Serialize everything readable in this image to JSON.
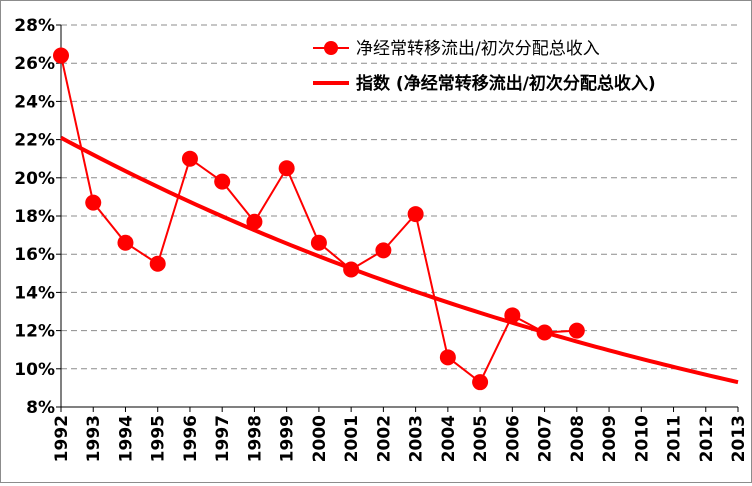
{
  "chart_data": {
    "type": "line",
    "categories": [
      "1992",
      "1993",
      "1994",
      "1995",
      "1996",
      "1997",
      "1998",
      "1999",
      "2000",
      "2001",
      "2002",
      "2003",
      "2004",
      "2005",
      "2006",
      "2007",
      "2008",
      "2009",
      "2010",
      "2011",
      "2012",
      "2013"
    ],
    "series": [
      {
        "name": "净经常转移流出/初次分配总收入",
        "color": "#ff0000",
        "marker": "circle",
        "values": [
          26.4,
          18.7,
          16.6,
          15.5,
          21.0,
          19.8,
          17.7,
          20.5,
          16.6,
          15.2,
          16.2,
          18.1,
          10.6,
          9.3,
          12.8,
          11.9,
          12.0,
          null,
          null,
          null,
          null,
          null
        ]
      },
      {
        "name": "指数 (净经常转移流出/初次分配总收入)",
        "color": "#ff0000",
        "type": "trendline-exponential",
        "start_value": 22.1,
        "end_value": 9.3
      }
    ],
    "yticks": [
      "8%",
      "10%",
      "12%",
      "14%",
      "16%",
      "18%",
      "20%",
      "22%",
      "24%",
      "26%",
      "28%"
    ],
    "ylim": [
      8,
      28
    ],
    "grid": "horizontal-dashed",
    "legend": "top-right"
  }
}
